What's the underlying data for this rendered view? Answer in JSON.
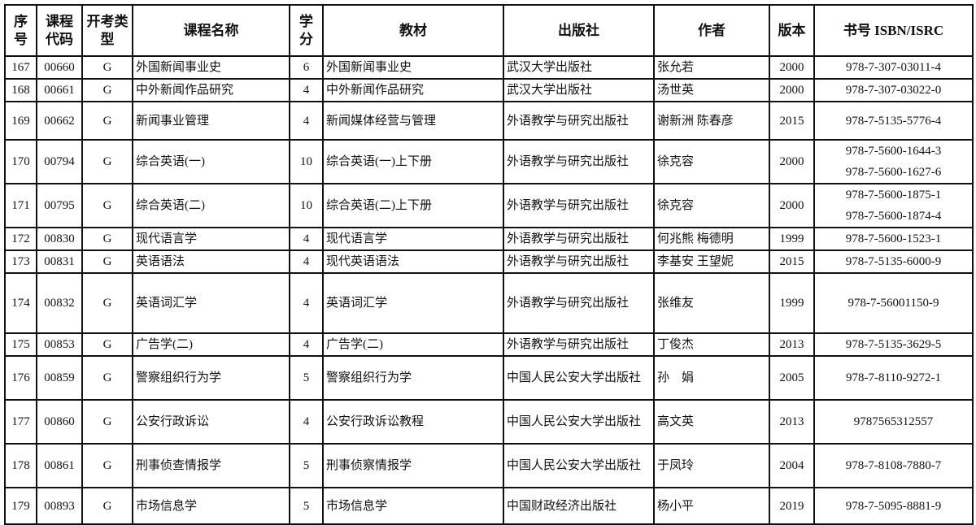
{
  "headers": [
    "序号",
    "课程代码",
    "开考类型",
    "课程名称",
    "学分",
    "教材",
    "出版社",
    "作者",
    "版本",
    "书号 ISBN/ISRC"
  ],
  "rows": [
    {
      "no": "167",
      "code": "00660",
      "type": "G",
      "course": "外国新闻事业史",
      "credit": "6",
      "textbook": "外国新闻事业史",
      "publisher": "武汉大学出版社",
      "author": "张允若",
      "edition": "2000",
      "isbn": [
        "978-7-307-03011-4"
      ]
    },
    {
      "no": "168",
      "code": "00661",
      "type": "G",
      "course": "中外新闻作品研究",
      "credit": "4",
      "textbook": "中外新闻作品研究",
      "publisher": "武汉大学出版社",
      "author": "汤世英",
      "edition": "2000",
      "isbn": [
        "978-7-307-03022-0"
      ]
    },
    {
      "no": "169",
      "code": "00662",
      "type": "G",
      "course": "新闻事业管理",
      "credit": "4",
      "textbook": "新闻媒体经营与管理",
      "publisher": "外语教学与研究出版社",
      "author": "谢新洲 陈春彦",
      "edition": "2015",
      "isbn": [
        "978-7-5135-5776-4"
      ]
    },
    {
      "no": "170",
      "code": "00794",
      "type": "G",
      "course": "综合英语(一)",
      "credit": "10",
      "textbook": "综合英语(一)上下册",
      "publisher": "外语教学与研究出版社",
      "author": "徐克容",
      "edition": "2000",
      "isbn": [
        "978-7-5600-1644-3",
        "978-7-5600-1627-6"
      ]
    },
    {
      "no": "171",
      "code": "00795",
      "type": "G",
      "course": "综合英语(二)",
      "credit": "10",
      "textbook": "综合英语(二)上下册",
      "publisher": "外语教学与研究出版社",
      "author": "徐克容",
      "edition": "2000",
      "isbn": [
        "978-7-5600-1875-1",
        "978-7-5600-1874-4"
      ]
    },
    {
      "no": "172",
      "code": "00830",
      "type": "G",
      "course": "现代语言学",
      "credit": "4",
      "textbook": "现代语言学",
      "publisher": "外语教学与研究出版社",
      "author": "何兆熊 梅德明",
      "edition": "1999",
      "isbn": [
        "978-7-5600-1523-1"
      ]
    },
    {
      "no": "173",
      "code": "00831",
      "type": "G",
      "course": "英语语法",
      "credit": "4",
      "textbook": "现代英语语法",
      "publisher": "外语教学与研究出版社",
      "author": "李基安 王望妮",
      "edition": "2015",
      "isbn": [
        "978-7-5135-6000-9"
      ]
    },
    {
      "no": "174",
      "code": "00832",
      "type": "G",
      "course": "英语词汇学",
      "credit": "4",
      "textbook": "英语词汇学",
      "publisher": "外语教学与研究出版社",
      "author": "张维友",
      "edition": "1999",
      "isbn": [
        "978-7-56001150-9"
      ]
    },
    {
      "no": "175",
      "code": "00853",
      "type": "G",
      "course": "广告学(二)",
      "credit": "4",
      "textbook": "广告学(二)",
      "publisher": "外语教学与研究出版社",
      "author": "丁俊杰",
      "edition": "2013",
      "isbn": [
        "978-7-5135-3629-5"
      ]
    },
    {
      "no": "176",
      "code": "00859",
      "type": "G",
      "course": "警察组织行为学",
      "credit": "5",
      "textbook": "警察组织行为学",
      "publisher": "中国人民公安大学出版社",
      "author": "孙　娟",
      "edition": "2005",
      "isbn": [
        "978-7-8110-9272-1"
      ]
    },
    {
      "no": "177",
      "code": "00860",
      "type": "G",
      "course": "公安行政诉讼",
      "credit": "4",
      "textbook": "公安行政诉讼教程",
      "publisher": "中国人民公安大学出版社",
      "author": "高文英",
      "edition": "2013",
      "isbn": [
        "9787565312557"
      ]
    },
    {
      "no": "178",
      "code": "00861",
      "type": "G",
      "course": "刑事侦查情报学",
      "credit": "5",
      "textbook": "刑事侦察情报学",
      "publisher": "中国人民公安大学出版社",
      "author": "于凤玲",
      "edition": "2004",
      "isbn": [
        "978-7-8108-7880-7"
      ]
    },
    {
      "no": "179",
      "code": "00893",
      "type": "G",
      "course": "市场信息学",
      "credit": "5",
      "textbook": "市场信息学",
      "publisher": "中国财政经济出版社",
      "author": "杨小平",
      "edition": "2019",
      "isbn": [
        "978-7-5095-8881-9"
      ]
    }
  ]
}
